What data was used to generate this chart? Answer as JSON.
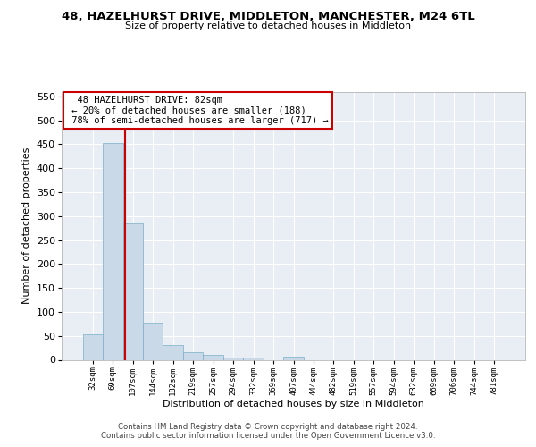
{
  "title": "48, HAZELHURST DRIVE, MIDDLETON, MANCHESTER, M24 6TL",
  "subtitle": "Size of property relative to detached houses in Middleton",
  "xlabel": "Distribution of detached houses by size in Middleton",
  "ylabel": "Number of detached properties",
  "bin_labels": [
    "32sqm",
    "69sqm",
    "107sqm",
    "144sqm",
    "182sqm",
    "219sqm",
    "257sqm",
    "294sqm",
    "332sqm",
    "369sqm",
    "407sqm",
    "444sqm",
    "482sqm",
    "519sqm",
    "557sqm",
    "594sqm",
    "632sqm",
    "669sqm",
    "706sqm",
    "744sqm",
    "781sqm"
  ],
  "bar_heights": [
    53,
    452,
    284,
    78,
    30,
    15,
    10,
    5,
    5,
    0,
    6,
    0,
    0,
    0,
    0,
    0,
    0,
    0,
    0,
    0,
    0
  ],
  "bar_color": "#c9d9e8",
  "bar_edge_color": "#7aaec8",
  "vline_x": 1.62,
  "vline_color": "#cc0000",
  "annotation_text": "  48 HAZELHURST DRIVE: 82sqm\n ← 20% of detached houses are smaller (188)\n 78% of semi-detached houses are larger (717) →",
  "annotation_box_color": "#ffffff",
  "annotation_box_edge": "#cc0000",
  "ylim": [
    0,
    560
  ],
  "yticks": [
    0,
    50,
    100,
    150,
    200,
    250,
    300,
    350,
    400,
    450,
    500,
    550
  ],
  "bg_color": "#e8eef4",
  "footer_line1": "Contains HM Land Registry data © Crown copyright and database right 2024.",
  "footer_line2": "Contains public sector information licensed under the Open Government Licence v3.0."
}
